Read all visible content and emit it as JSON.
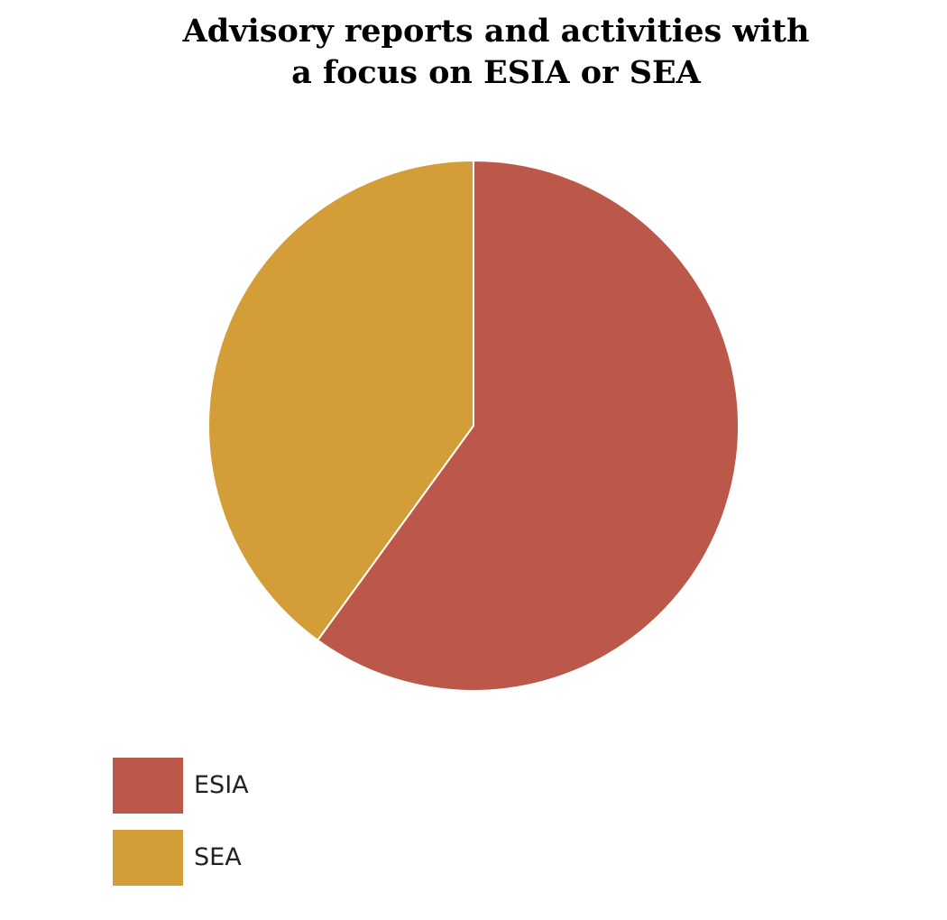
{
  "chart_data": {
    "type": "pie",
    "title_lines": [
      "Advisory reports and activities with",
      "a focus on ESIA or SEA"
    ],
    "series": [
      {
        "name": "ESIA",
        "value": 60,
        "color": "#bb5849"
      },
      {
        "name": "SEA",
        "value": 40,
        "color": "#d39e37"
      }
    ],
    "start": "top",
    "direction": "clockwise",
    "legend_position": "bottom-left"
  }
}
